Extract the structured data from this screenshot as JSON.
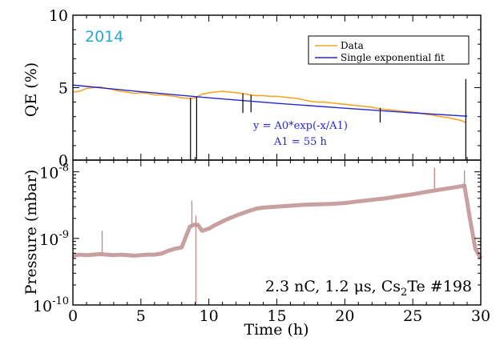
{
  "colors": {
    "data": "#f5a623",
    "fit": "#2525d6",
    "spike": "#000000",
    "pressure": "#bf8f8f",
    "year": "#2aa7d6"
  },
  "chart_data": [
    {
      "type": "line",
      "ylabel": "QE (%)",
      "xlim": [
        0,
        30
      ],
      "ylim": [
        0,
        10
      ],
      "yticks": [
        "0",
        "5",
        "10"
      ],
      "annotation_year": "2014",
      "legend": {
        "placement": "top-right",
        "entries": [
          "Data",
          "Single exponential fit"
        ]
      },
      "fit_text_1": "y = A0*exp(-x/A1)",
      "fit_text_2": "A1 =  55 h",
      "series": [
        {
          "name": "Data",
          "x": [
            0,
            0.5,
            1,
            1.5,
            2,
            2.5,
            3,
            3.5,
            4,
            4.5,
            5,
            5.5,
            6,
            6.5,
            7,
            7.5,
            8,
            8.5,
            9,
            9.5,
            10,
            10.5,
            11,
            11.5,
            12,
            12.5,
            13,
            13.5,
            14,
            14.5,
            15,
            15.5,
            16,
            16.5,
            17,
            17.5,
            18,
            18.5,
            19,
            19.5,
            20,
            20.5,
            21,
            21.5,
            22,
            22.5,
            23,
            23.5,
            24,
            24.5,
            25,
            25.5,
            26,
            26.5,
            27,
            27.5,
            28,
            28.5,
            28.9
          ],
          "y": [
            4.7,
            4.75,
            4.95,
            5.0,
            5.05,
            4.95,
            4.85,
            4.75,
            4.7,
            4.6,
            4.65,
            4.6,
            4.5,
            4.5,
            4.45,
            4.4,
            4.3,
            4.25,
            4.3,
            4.55,
            4.65,
            4.7,
            4.75,
            4.7,
            4.65,
            4.6,
            4.5,
            4.45,
            4.45,
            4.4,
            4.4,
            4.35,
            4.3,
            4.25,
            4.15,
            4.05,
            4.0,
            4.0,
            3.95,
            3.9,
            3.85,
            3.8,
            3.75,
            3.7,
            3.65,
            3.55,
            3.5,
            3.45,
            3.4,
            3.35,
            3.3,
            3.25,
            3.15,
            3.1,
            3.0,
            2.95,
            2.85,
            2.75,
            2.6
          ]
        },
        {
          "name": "Single exponential fit",
          "x": [
            0,
            5,
            10,
            15,
            20,
            25,
            29
          ],
          "y": [
            5.18,
            4.72,
            4.3,
            3.92,
            3.58,
            3.26,
            3.03
          ]
        }
      ],
      "spikes": [
        {
          "x": 8.65,
          "y_top": 4.3,
          "y_bottom": 0
        },
        {
          "x": 9.1,
          "y_top": 4.35,
          "y_bottom": 0
        },
        {
          "x": 12.5,
          "y_top": 4.6,
          "y_bottom": 3.25
        },
        {
          "x": 13.1,
          "y_top": 4.5,
          "y_bottom": 3.3
        },
        {
          "x": 22.6,
          "y_top": 3.6,
          "y_bottom": 2.6
        },
        {
          "x": 28.9,
          "y_top": 5.6,
          "y_bottom": 0
        }
      ]
    },
    {
      "type": "line",
      "scale": "log",
      "ylabel": "Pressure (mbar)",
      "xlabel": "Time (h)",
      "xlim": [
        0,
        30
      ],
      "ylim": [
        1e-10,
        1.5e-08
      ],
      "xticks": [
        "0",
        "5",
        "10",
        "15",
        "20",
        "25",
        "30"
      ],
      "ytick_labels": [
        {
          "value": 1e-08,
          "base": "10",
          "exp": "-8"
        },
        {
          "value": 1e-09,
          "base": "10",
          "exp": "-9"
        },
        {
          "value": 1e-10,
          "base": "10",
          "exp": "-10"
        }
      ],
      "condition_label": {
        "prefix": "2.3 nC, 1.2 μs, Cs",
        "sub": "2",
        "suffix": "Te #198"
      },
      "series": [
        {
          "name": "Pressure",
          "x": [
            0,
            0.5,
            1,
            1.5,
            2,
            2.5,
            3,
            3.5,
            4,
            4.5,
            5,
            5.5,
            6,
            6.5,
            7,
            7.5,
            8,
            8.3,
            8.6,
            8.9,
            9.2,
            9.5,
            10,
            10.5,
            11,
            11.5,
            12,
            12.5,
            13,
            13.5,
            14,
            15,
            16,
            17,
            18,
            19,
            20,
            21,
            22,
            23,
            24,
            25,
            26,
            27,
            28,
            28.8,
            29.2,
            29.6,
            30
          ],
          "y": [
            5.5e-10,
            5.7e-10,
            5.6e-10,
            5.7e-10,
            5.8e-10,
            5.7e-10,
            5.6e-10,
            5.7e-10,
            5.6e-10,
            5.5e-10,
            5.6e-10,
            5.7e-10,
            5.7e-10,
            5.9e-10,
            6.5e-10,
            7e-10,
            7.3e-10,
            1.05e-09,
            1.5e-09,
            1.6e-09,
            1.6e-09,
            1.3e-09,
            1.4e-09,
            1.6e-09,
            1.8e-09,
            2e-09,
            2.2e-09,
            2.4e-09,
            2.6e-09,
            2.8e-09,
            2.9e-09,
            3e-09,
            3.1e-09,
            3.2e-09,
            3.25e-09,
            3.3e-09,
            3.4e-09,
            3.6e-09,
            3.8e-09,
            4e-09,
            4.3e-09,
            4.6e-09,
            5e-09,
            5.4e-09,
            5.8e-09,
            6.2e-09,
            2e-09,
            7e-10,
            5e-10
          ]
        }
      ],
      "spikes": [
        {
          "x": 2.15,
          "y_top": 1.3e-09,
          "y_bottom": 5.7e-10
        },
        {
          "x": 8.75,
          "y_top": 3.7e-09,
          "y_bottom": 1.5e-09
        },
        {
          "x": 9.05,
          "y_top": 2.2e-09,
          "y_bottom": 1e-10
        },
        {
          "x": 26.6,
          "y_top": 1.15e-08,
          "y_bottom": 5.5e-09
        },
        {
          "x": 28.8,
          "y_top": 1.05e-08,
          "y_bottom": 6e-09
        }
      ]
    }
  ]
}
